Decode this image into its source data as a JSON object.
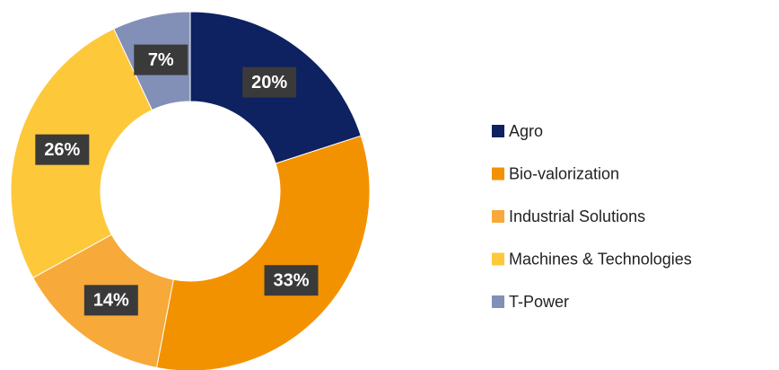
{
  "chart_data": {
    "type": "donut",
    "categories": [
      "Agro",
      "Bio-valorization",
      "Industrial Solutions",
      "Machines & Technologies",
      "T-Power"
    ],
    "values": [
      20,
      33,
      14,
      26,
      7
    ],
    "value_labels": [
      "20%",
      "33%",
      "14%",
      "26%",
      "7%"
    ],
    "colors": [
      "#0e2160",
      "#f39200",
      "#f7a939",
      "#fdc83a",
      "#8290b8"
    ],
    "legend": "right"
  }
}
